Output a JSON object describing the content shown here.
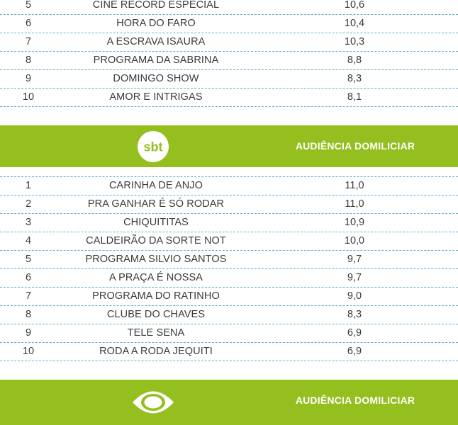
{
  "record_section": {
    "rows": [
      {
        "rank": "5",
        "program": "CINE RECORD ESPECIAL",
        "value": "10,6"
      },
      {
        "rank": "6",
        "program": "HORA DO FARO",
        "value": "10,4"
      },
      {
        "rank": "7",
        "program": "A ESCRAVA ISAURA",
        "value": "10,3"
      },
      {
        "rank": "8",
        "program": "PROGRAMA DA SABRINA",
        "value": "8,8"
      },
      {
        "rank": "9",
        "program": "DOMINGO SHOW",
        "value": "8,3"
      },
      {
        "rank": "10",
        "program": "AMOR E INTRIGAS",
        "value": "8,1"
      }
    ]
  },
  "sbt_section": {
    "logo_text": "sbt",
    "header": "AUDIÊNCIA DOMILICIAR",
    "rows": [
      {
        "rank": "1",
        "program": "CARINHA DE ANJO",
        "value": "11,0"
      },
      {
        "rank": "2",
        "program": "PRA GANHAR É SÓ RODAR",
        "value": "11,0"
      },
      {
        "rank": "3",
        "program": "CHIQUITITAS",
        "value": "10,9"
      },
      {
        "rank": "4",
        "program": "CALDEIRÃO DA SORTE NOT",
        "value": "10,0"
      },
      {
        "rank": "5",
        "program": "PROGRAMA SILVIO SANTOS",
        "value": "9,7"
      },
      {
        "rank": "6",
        "program": "A PRAÇA É NOSSA",
        "value": "9,7"
      },
      {
        "rank": "7",
        "program": "PROGRAMA DO RATINHO",
        "value": "9,0"
      },
      {
        "rank": "8",
        "program": "CLUBE DO CHAVES",
        "value": "8,3"
      },
      {
        "rank": "9",
        "program": "TELE SENA",
        "value": "6,9"
      },
      {
        "rank": "10",
        "program": "RODA A RODA JEQUITI",
        "value": "6,9"
      }
    ]
  },
  "band_section": {
    "header": "AUDIÊNCIA DOMILICIAR"
  },
  "colors": {
    "band_green": "#95bf1f",
    "divider_blue": "#6aa7c9",
    "text": "#3a3a3a"
  }
}
